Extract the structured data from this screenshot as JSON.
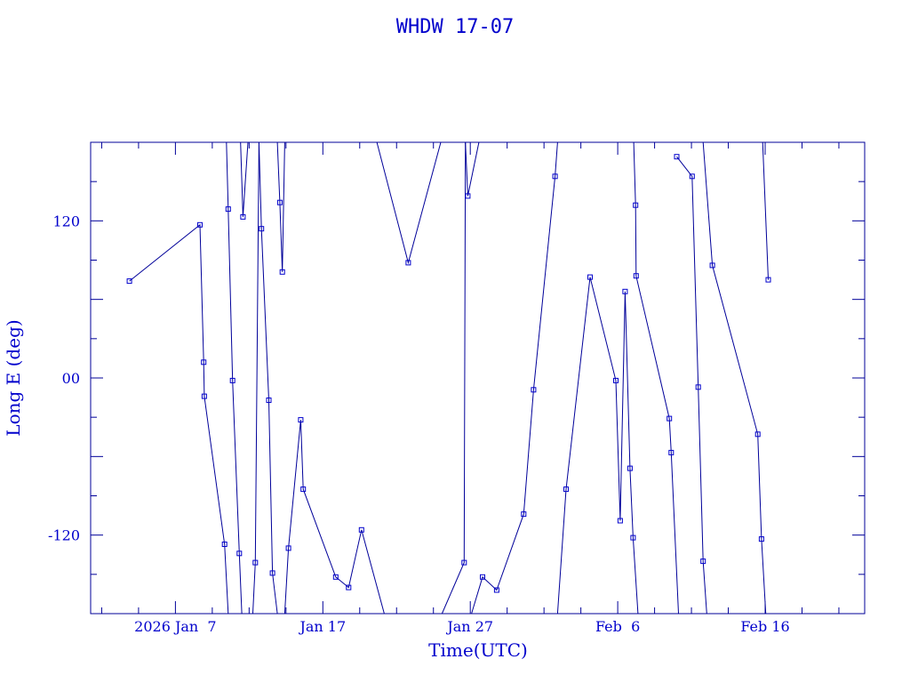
{
  "chart_data": {
    "type": "line",
    "title": "WHDW 17-07",
    "xlabel": "Time(UTC)",
    "ylabel": "Long E (deg)",
    "x_is_date": true,
    "xlim": [
      "2026-01-01T06:00",
      "2026-02-22T18:00"
    ],
    "ylim": [
      -180,
      180
    ],
    "y_ticks": [
      {
        "value": 120,
        "label": "120"
      },
      {
        "value": 0,
        "label": "00"
      },
      {
        "value": -120,
        "label": "-120"
      }
    ],
    "x_ticks": [
      {
        "value": "2026-01-07T00:00",
        "label": "2026 Jan  7"
      },
      {
        "value": "2026-01-17T00:00",
        "label": "Jan 17"
      },
      {
        "value": "2026-01-27T00:00",
        "label": "Jan 27"
      },
      {
        "value": "2026-02-06T00:00",
        "label": "Feb  6"
      },
      {
        "value": "2026-02-16T00:00",
        "label": "Feb 16"
      }
    ],
    "grid": false,
    "legend": "none",
    "color": "#0000cc",
    "series": [
      {
        "points": [
          [
            "2026-01-03T21:00",
            74
          ],
          [
            "2026-01-08T16:00",
            117
          ],
          [
            "2026-01-08T22:00",
            12
          ],
          [
            "2026-01-08T23:00",
            -14
          ],
          [
            "2026-01-10T08:00",
            -127
          ],
          [
            "2026-01-10T14:00",
            -180
          ]
        ]
      },
      {
        "points": [
          [
            "2026-01-10T11:00",
            180
          ],
          [
            "2026-01-10T14:00",
            129
          ],
          [
            "2026-01-10T21:00",
            -2
          ],
          [
            "2026-01-11T08:00",
            -134
          ],
          [
            "2026-01-11T12:00",
            -180
          ]
        ]
      },
      {
        "points": [
          [
            "2026-01-11T10:00",
            180
          ],
          [
            "2026-01-11T14:00",
            123
          ],
          [
            "2026-01-11T22:00",
            180
          ]
        ]
      },
      {
        "points": [
          [
            "2026-01-12T06:00",
            -180
          ],
          [
            "2026-01-12T10:00",
            -141
          ],
          [
            "2026-01-12T16:00",
            180
          ]
        ]
      },
      {
        "points": [
          [
            "2026-01-12T16:00",
            180
          ],
          [
            "2026-01-12T20:00",
            114
          ],
          [
            "2026-01-13T08:00",
            -17
          ],
          [
            "2026-01-13T14:00",
            -149
          ],
          [
            "2026-01-13T22:00",
            -180
          ]
        ]
      },
      {
        "points": [
          [
            "2026-01-13T22:00",
            180
          ],
          [
            "2026-01-14T02:00",
            134
          ],
          [
            "2026-01-14T06:00",
            81
          ],
          [
            "2026-01-14T10:00",
            180
          ]
        ]
      },
      {
        "points": [
          [
            "2026-01-14T10:00",
            -180
          ],
          [
            "2026-01-14T16:00",
            -130
          ],
          [
            "2026-01-15T12:00",
            -32
          ],
          [
            "2026-01-15T16:00",
            -85
          ],
          [
            "2026-01-17T21:00",
            -152
          ],
          [
            "2026-01-18T18:00",
            -160
          ],
          [
            "2026-01-19T15:00",
            -116
          ],
          [
            "2026-01-21T04:00",
            -180
          ]
        ]
      },
      {
        "points": [
          [
            "2026-01-20T16:00",
            180
          ],
          [
            "2026-01-22T19:00",
            88
          ],
          [
            "2026-01-25T00:00",
            180
          ]
        ]
      },
      {
        "points": [
          [
            "2026-01-25T02:00",
            -180
          ],
          [
            "2026-01-26T14:00",
            -141
          ],
          [
            "2026-01-26T16:00",
            180
          ]
        ]
      },
      {
        "points": [
          [
            "2026-01-26T16:00",
            180
          ],
          [
            "2026-01-26T20:00",
            139
          ],
          [
            "2026-01-27T14:00",
            180
          ]
        ]
      },
      {
        "points": [
          [
            "2026-01-27T02:00",
            -180
          ],
          [
            "2026-01-27T20:00",
            -152
          ],
          [
            "2026-01-28T19:00",
            -162
          ],
          [
            "2026-01-30T15:00",
            -104
          ],
          [
            "2026-01-31T07:00",
            -9
          ],
          [
            "2026-02-01T18:00",
            154
          ],
          [
            "2026-02-01T22:00",
            180
          ]
        ]
      },
      {
        "points": [
          [
            "2026-02-01T22:00",
            -180
          ],
          [
            "2026-02-02T12:00",
            -85
          ],
          [
            "2026-02-04T03:00",
            77
          ],
          [
            "2026-02-05T21:00",
            -2
          ],
          [
            "2026-02-06T04:00",
            -109
          ],
          [
            "2026-02-06T12:00",
            66
          ],
          [
            "2026-02-06T20:00",
            -69
          ],
          [
            "2026-02-07T01:00",
            -122
          ],
          [
            "2026-02-07T09:00",
            -180
          ]
        ]
      },
      {
        "points": [
          [
            "2026-02-07T02:00",
            180
          ],
          [
            "2026-02-07T05:00",
            132
          ],
          [
            "2026-02-07T06:00",
            78
          ],
          [
            "2026-02-09T12:00",
            -31
          ],
          [
            "2026-02-09T15:00",
            -57
          ],
          [
            "2026-02-10T03:00",
            -180
          ]
        ]
      },
      {
        "points": [
          [
            "2026-02-10T00:00",
            169
          ],
          [
            "2026-02-11T01:00",
            154
          ],
          [
            "2026-02-11T11:00",
            -7
          ],
          [
            "2026-02-11T19:00",
            -140
          ],
          [
            "2026-02-12T01:00",
            -180
          ]
        ]
      },
      {
        "points": [
          [
            "2026-02-11T19:00",
            180
          ],
          [
            "2026-02-12T10:00",
            86
          ],
          [
            "2026-02-15T12:00",
            -43
          ],
          [
            "2026-02-15T18:00",
            -123
          ],
          [
            "2026-02-16T01:00",
            -180
          ]
        ]
      },
      {
        "points": [
          [
            "2026-02-15T20:00",
            180
          ],
          [
            "2026-02-16T05:00",
            75
          ]
        ]
      }
    ]
  }
}
